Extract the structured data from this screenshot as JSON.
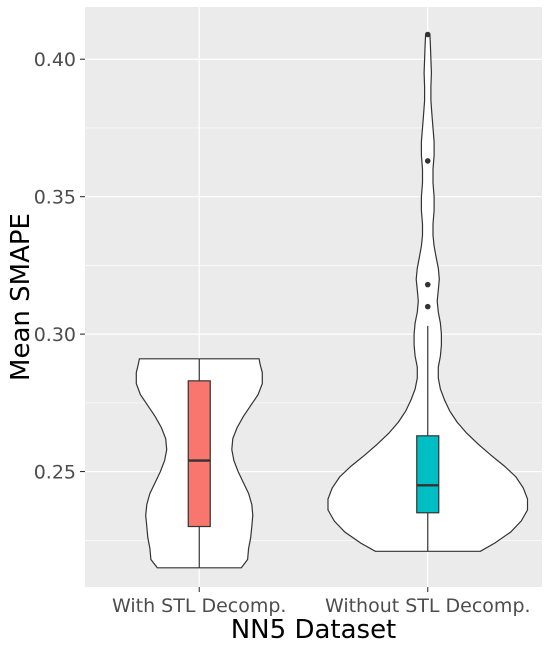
{
  "chart_data": {
    "type": "violin",
    "title": "",
    "xlabel": "NN5 Dataset",
    "ylabel": "Mean SMAPE",
    "ylim": [
      0.208,
      0.419
    ],
    "yticks": [
      0.25,
      0.3,
      0.35,
      0.4
    ],
    "ytick_labels": [
      "0.25",
      "0.30",
      "0.35",
      "0.40"
    ],
    "grid": true,
    "legend": "none",
    "categories": [
      "With STL Decomp.",
      "Without STL Decomp."
    ],
    "series": [
      {
        "category": "With STL Decomp.",
        "fill": "#F8766D",
        "box": {
          "min": 0.215,
          "q1": 0.23,
          "median": 0.254,
          "q3": 0.283,
          "max": 0.291
        },
        "outliers": [],
        "density": [
          [
            0.215,
            0.4
          ],
          [
            0.218,
            0.46
          ],
          [
            0.222,
            0.47
          ],
          [
            0.226,
            0.49
          ],
          [
            0.23,
            0.5
          ],
          [
            0.234,
            0.51
          ],
          [
            0.238,
            0.5
          ],
          [
            0.242,
            0.47
          ],
          [
            0.246,
            0.42
          ],
          [
            0.25,
            0.37
          ],
          [
            0.254,
            0.33
          ],
          [
            0.258,
            0.31
          ],
          [
            0.262,
            0.32
          ],
          [
            0.266,
            0.36
          ],
          [
            0.27,
            0.42
          ],
          [
            0.274,
            0.49
          ],
          [
            0.278,
            0.56
          ],
          [
            0.282,
            0.6
          ],
          [
            0.286,
            0.6
          ],
          [
            0.289,
            0.58
          ],
          [
            0.291,
            0.57
          ]
        ]
      },
      {
        "category": "Without STL Decomp.",
        "fill": "#00BFC4",
        "box": {
          "min": 0.221,
          "q1": 0.235,
          "median": 0.245,
          "q3": 0.263,
          "max": 0.303
        },
        "outliers": [
          0.31,
          0.318,
          0.363,
          0.409
        ],
        "density": [
          [
            0.221,
            0.5
          ],
          [
            0.224,
            0.64
          ],
          [
            0.228,
            0.79
          ],
          [
            0.232,
            0.89
          ],
          [
            0.236,
            0.95
          ],
          [
            0.24,
            0.95
          ],
          [
            0.244,
            0.91
          ],
          [
            0.248,
            0.84
          ],
          [
            0.252,
            0.73
          ],
          [
            0.256,
            0.6
          ],
          [
            0.26,
            0.48
          ],
          [
            0.264,
            0.37
          ],
          [
            0.268,
            0.28
          ],
          [
            0.272,
            0.21
          ],
          [
            0.276,
            0.16
          ],
          [
            0.28,
            0.12
          ],
          [
            0.284,
            0.1
          ],
          [
            0.288,
            0.1
          ],
          [
            0.292,
            0.12
          ],
          [
            0.296,
            0.13
          ],
          [
            0.3,
            0.13
          ],
          [
            0.304,
            0.12
          ],
          [
            0.308,
            0.1
          ],
          [
            0.312,
            0.09
          ],
          [
            0.316,
            0.1
          ],
          [
            0.32,
            0.11
          ],
          [
            0.324,
            0.1
          ],
          [
            0.328,
            0.08
          ],
          [
            0.332,
            0.06
          ],
          [
            0.336,
            0.05
          ],
          [
            0.34,
            0.05
          ],
          [
            0.345,
            0.06
          ],
          [
            0.35,
            0.06
          ],
          [
            0.355,
            0.05
          ],
          [
            0.36,
            0.05
          ],
          [
            0.365,
            0.06
          ],
          [
            0.37,
            0.06
          ],
          [
            0.375,
            0.05
          ],
          [
            0.38,
            0.04
          ],
          [
            0.385,
            0.03
          ],
          [
            0.39,
            0.03
          ],
          [
            0.395,
            0.035
          ],
          [
            0.4,
            0.03
          ],
          [
            0.405,
            0.025
          ],
          [
            0.409,
            0.02
          ]
        ]
      }
    ]
  }
}
